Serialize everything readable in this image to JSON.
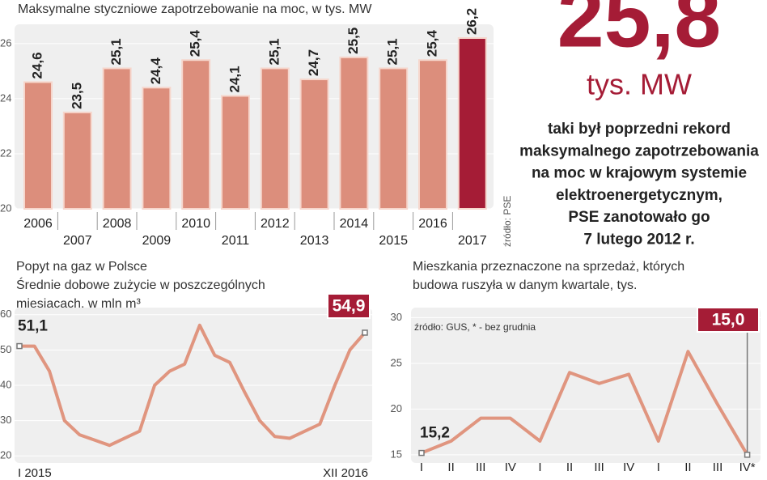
{
  "chart_data": [
    {
      "type": "bar",
      "title": "Maksymalne styczniowe zapotrzebowanie na moc, w tys. MW",
      "categories": [
        "2006",
        "2007",
        "2008",
        "2009",
        "2010",
        "2011",
        "2012",
        "2013",
        "2014",
        "2015",
        "2016",
        "2017"
      ],
      "values": [
        24.6,
        23.5,
        25.1,
        24.4,
        25.4,
        24.1,
        25.1,
        24.7,
        25.5,
        25.1,
        25.4,
        26.2
      ],
      "value_labels": [
        "24,6",
        "23,5",
        "25,1",
        "24,4",
        "25,4",
        "24,1",
        "25,1",
        "24,7",
        "25,5",
        "25,1",
        "25,4",
        "26,2"
      ],
      "colors": [
        "#dc8e7c",
        "#dc8e7c",
        "#dc8e7c",
        "#dc8e7c",
        "#dc8e7c",
        "#dc8e7c",
        "#dc8e7c",
        "#dc8e7c",
        "#dc8e7c",
        "#dc8e7c",
        "#dc8e7c",
        "#a51c36"
      ],
      "ylim": [
        20,
        26.7
      ],
      "yticks": [
        20,
        22,
        24,
        26
      ],
      "source": "źródło: PSE"
    },
    {
      "type": "line",
      "title": "Popyt na gaz w Polsce",
      "subtitle": [
        "Średnie dobowe zużycie w poszczególnych",
        "miesiącach, w mln m³"
      ],
      "categories": [
        "I 2015",
        null,
        null,
        null,
        null,
        null,
        null,
        null,
        null,
        null,
        null,
        null,
        null,
        null,
        null,
        null,
        null,
        null,
        null,
        null,
        null,
        null,
        null,
        "XII 2016"
      ],
      "values": [
        51.1,
        51.1,
        44,
        30,
        26,
        24.5,
        23,
        25,
        27,
        40,
        44,
        46,
        57,
        48.5,
        46.5,
        38,
        30,
        25.5,
        25,
        27,
        29,
        40,
        50,
        54.9
      ],
      "value_labels": [
        "51,1",
        null,
        null,
        null,
        null,
        null,
        null,
        null,
        null,
        null,
        null,
        null,
        null,
        null,
        null,
        null,
        null,
        null,
        null,
        null,
        null,
        null,
        null,
        "54,9"
      ],
      "color": "#e0957f",
      "ylim": [
        18,
        62
      ],
      "yticks": [
        20,
        30,
        40,
        50,
        60
      ]
    },
    {
      "type": "line",
      "title": [
        "Mieszkania przeznaczone na sprzedaż, których",
        "budowa ruszyła w danym kwartale, tys."
      ],
      "categories": [
        "I",
        "II",
        "III",
        "IV",
        "I",
        "II",
        "III",
        "IV",
        "I",
        "II",
        "III",
        "IV*"
      ],
      "values": [
        15.2,
        16.5,
        19,
        19,
        16.5,
        24,
        22.8,
        23.8,
        16.5,
        26.3,
        20.5,
        15.0
      ],
      "value_labels": [
        "15,2",
        null,
        null,
        null,
        null,
        null,
        null,
        null,
        null,
        null,
        null,
        "15,0"
      ],
      "color": "#e0957f",
      "ylim": [
        14.1,
        31.1
      ],
      "yticks": [
        15,
        20,
        25,
        30
      ],
      "source": "źródło: GUS, * - bez grudnia"
    }
  ],
  "record": {
    "value": "25,8",
    "unit": "tys. MW",
    "text": [
      "taki był poprzedni rekord",
      "maksymalnego zapotrzebowania",
      "na moc w krajowym systemie",
      "elektroenergetycznym,",
      "PSE zanotowało go",
      "7 lutego 2012 r."
    ]
  }
}
